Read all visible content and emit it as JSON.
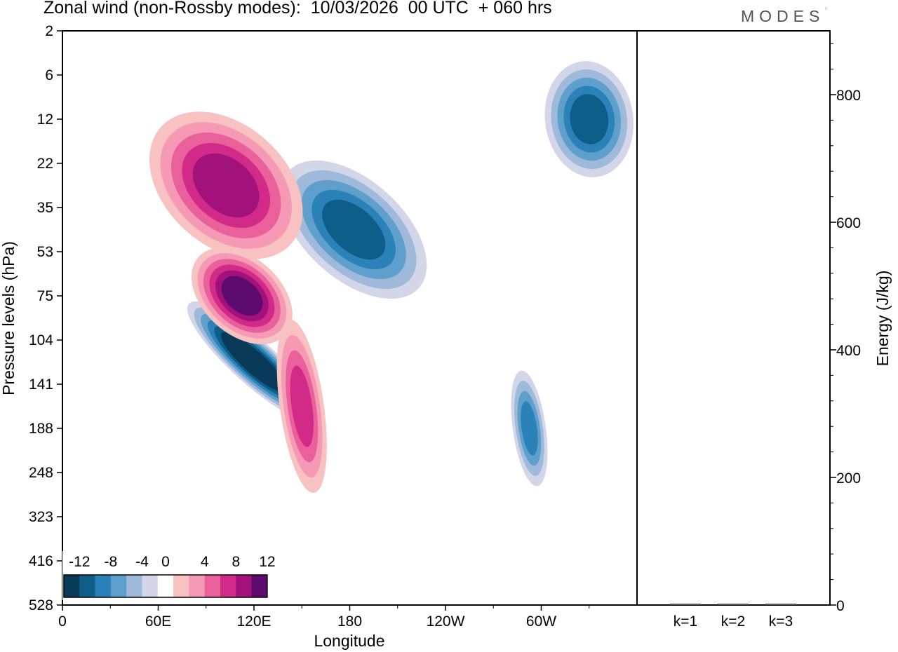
{
  "header": {
    "title": "Zonal wind (non-Rossby modes):  10/03/2026  00 UTC  + 060 hrs",
    "brand": "MODES"
  },
  "chart_data": [
    {
      "type": "heatmap",
      "title": "Zonal wind (non-Rossby modes):  10/03/2026  00 UTC  + 060 hrs",
      "xlabel": "Longitude",
      "ylabel": "Pressure levels (hPa)",
      "x_ticks": [
        "0",
        "60E",
        "120E",
        "180",
        "120W",
        "60W"
      ],
      "y_ticks": [
        "2",
        "6",
        "12",
        "22",
        "35",
        "53",
        "75",
        "104",
        "141",
        "188",
        "248",
        "323",
        "416",
        "528"
      ],
      "colorbar": {
        "labels": [
          "-12",
          "-8",
          "-4",
          "0",
          "4",
          "8",
          "12"
        ],
        "levels": [
          -14,
          -12,
          -10,
          -8,
          -6,
          -4,
          -2,
          2,
          4,
          6,
          8,
          10,
          12,
          14
        ],
        "colors": [
          "#0a3a5a",
          "#0f5e8a",
          "#2b82b8",
          "#5f9fcb",
          "#9fb9da",
          "#d3d6e8",
          "#ffffff",
          "#f8c2c2",
          "#f599b5",
          "#e9609b",
          "#d12a88",
          "#a3127a",
          "#5e0b70"
        ]
      },
      "features": [
        {
          "name": "negative-band-upper",
          "sign": -1,
          "lon_range": [
            160,
            205
          ],
          "level_range": [
            22,
            75
          ],
          "peak": -10
        },
        {
          "name": "negative-core-main",
          "sign": -1,
          "lon_range": [
            110,
            130
          ],
          "level_range": [
            75,
            188
          ],
          "peak": -14
        },
        {
          "name": "positive-band-upper",
          "sign": 1,
          "lon_range": [
            75,
            130
          ],
          "level_range": [
            12,
            53
          ],
          "peak": 10
        },
        {
          "name": "positive-core-main",
          "sign": 1,
          "lon_range": [
            95,
            130
          ],
          "level_range": [
            53,
            104
          ],
          "peak": 12
        },
        {
          "name": "positive-blob-150E",
          "sign": 1,
          "lon_range": [
            140,
            160
          ],
          "level_range": [
            104,
            248
          ],
          "peak": 8
        },
        {
          "name": "negative-blob-60W",
          "sign": -1,
          "lon_range": [
            285,
            300
          ],
          "level_range": [
            141,
            248
          ],
          "peak": -8
        },
        {
          "name": "negative-blob-upper-east",
          "sign": -1,
          "lon_range": [
            310,
            350
          ],
          "level_range": [
            6,
            22
          ],
          "peak": -10
        }
      ]
    },
    {
      "type": "bar",
      "ylabel": "Energy (J/kg)",
      "categories": [
        "k=1",
        "k=2",
        "k=3"
      ],
      "values": [
        0.5,
        0.5,
        0.5
      ],
      "ylim": [
        0,
        900
      ],
      "y_ticks": [
        "0",
        "200",
        "400",
        "600",
        "800"
      ]
    }
  ]
}
